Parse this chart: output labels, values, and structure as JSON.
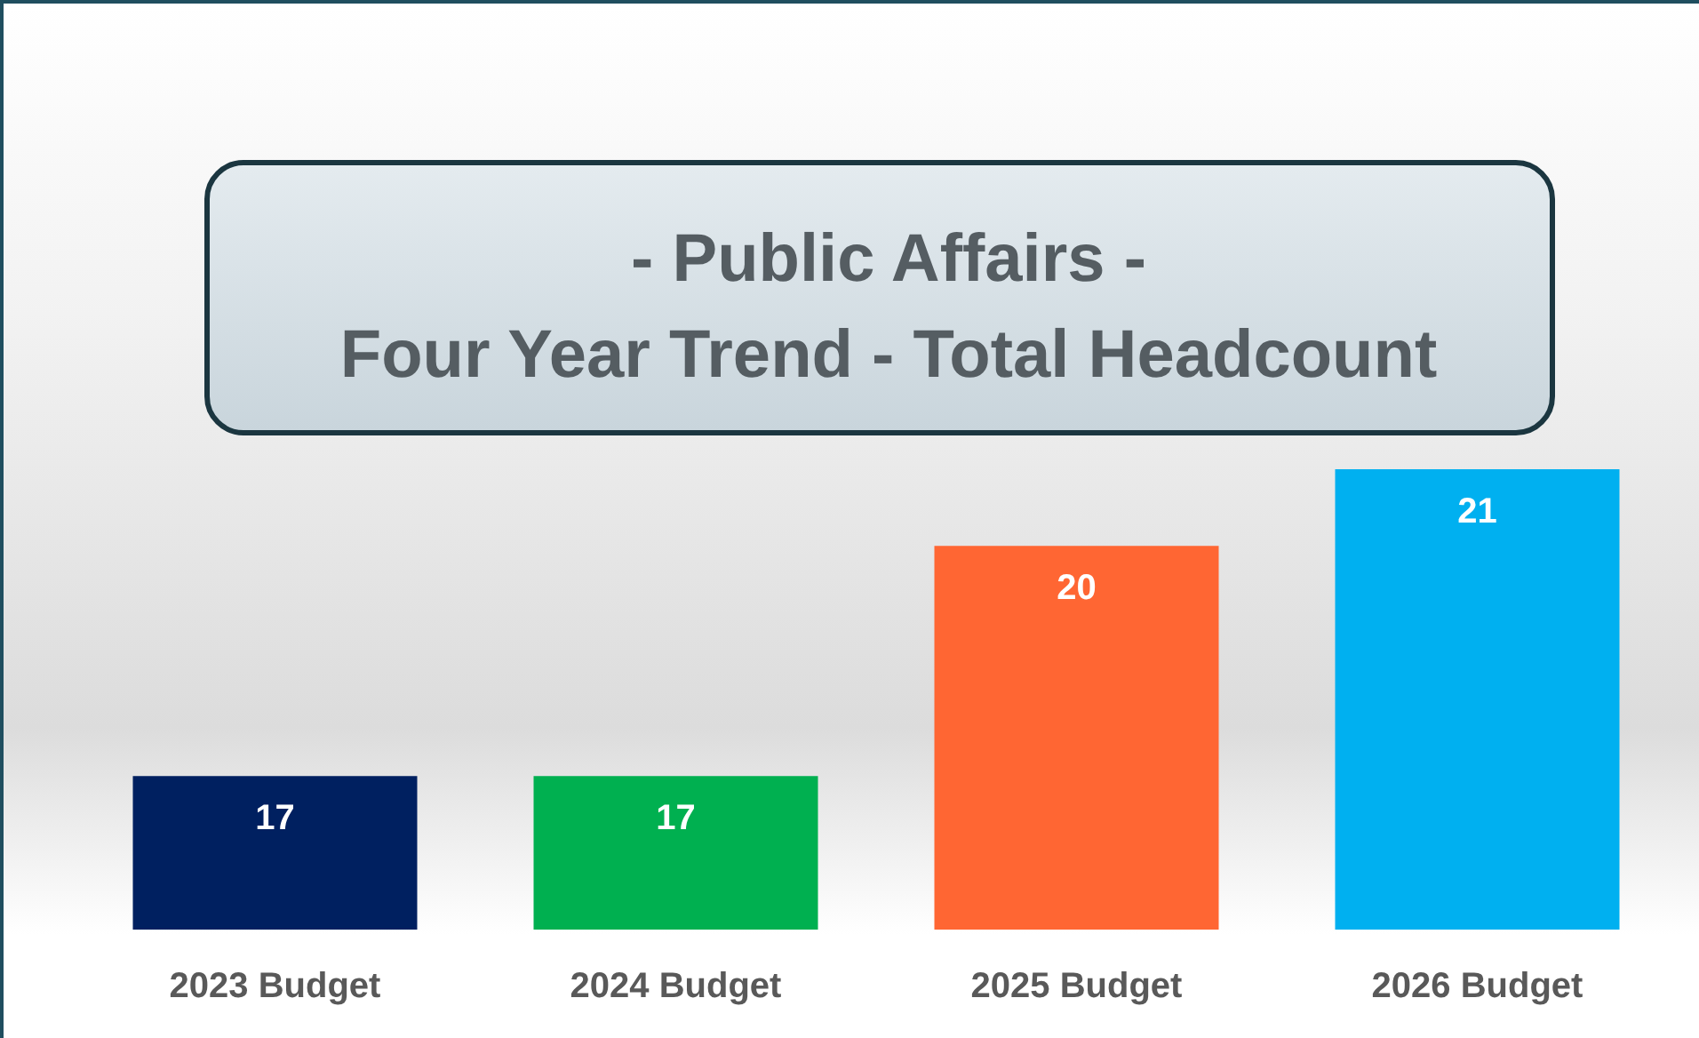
{
  "chart_data": {
    "type": "bar",
    "title": "- Public Affairs -\nFour Year Trend - Total Headcount",
    "categories": [
      "2023 Budget",
      "2024 Budget",
      "2025 Budget",
      "2026 Budget"
    ],
    "values": [
      17,
      17,
      20,
      21
    ],
    "colors": [
      "#002060",
      "#00b050",
      "#ff6633",
      "#00b0f0"
    ],
    "ylim": [
      15,
      21
    ],
    "data_labels": true
  }
}
